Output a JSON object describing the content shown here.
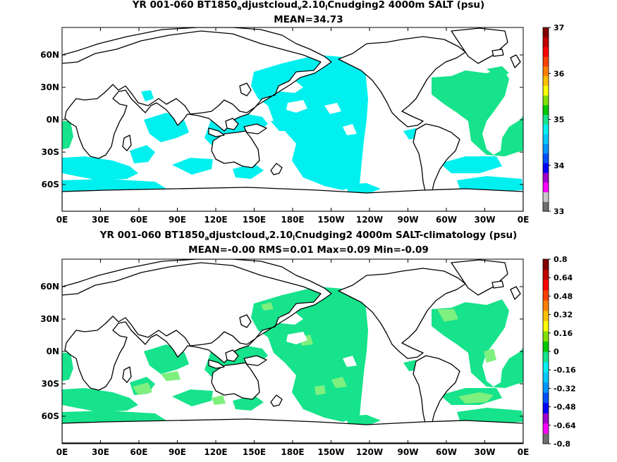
{
  "colors": {
    "upper_fill": "#00f0f0",
    "lower_fill_main": "#16e38b",
    "lower_fill_light": "#7ef07e",
    "coast": "#000000",
    "colorbar_upper": [
      "#6e6e6e",
      "#c8c8c8",
      "#ff00ff",
      "#a000c8",
      "#0000ff",
      "#0050ff",
      "#0096ff",
      "#00c8ff",
      "#00f0f0",
      "#16e38b",
      "#00c800",
      "#80e000",
      "#ffff00",
      "#ffc000",
      "#ff8000",
      "#ff4000",
      "#ff0000",
      "#c00000",
      "#800000"
    ],
    "colorbar_lower": [
      "#6e6e6e",
      "#ff00ff",
      "#a000c8",
      "#0000ff",
      "#0050ff",
      "#0096ff",
      "#00c8ff",
      "#00f0f0",
      "#16e38b",
      "#00c800",
      "#80e000",
      "#ffff00",
      "#ffc000",
      "#ff8000",
      "#ff4000",
      "#ff0000",
      "#c00000",
      "#800000"
    ]
  },
  "panel1": {
    "title_pre": "YR 001-060 BT1850",
    "sub1": "a",
    "title_mid1": "djustcloud",
    "sub2": "v",
    "title_mid2": "2.10",
    "sub3": "l",
    "title_post": "Cnudging2 4000m SALT (psu)",
    "stats": "MEAN=34.73",
    "colorbar_labels": [
      "37",
      "36",
      "35",
      "34",
      "33"
    ]
  },
  "panel2": {
    "title_pre": "YR 001-060 BT1850",
    "sub1": "a",
    "title_mid1": "djustcloud",
    "sub2": "v",
    "title_mid2": "2.10",
    "sub3": "l",
    "title_post": "Cnudging2 4000m SALT-climatology (psu)",
    "stats": "MEAN=-0.00   RMS=0.01   Max=0.09   Min=-0.09",
    "colorbar_labels": [
      "0.8",
      "0.64",
      "0.48",
      "0.32",
      "0.16",
      "0",
      "-0.16",
      "-0.32",
      "-0.48",
      "-0.64",
      "-0.8"
    ]
  },
  "axes": {
    "x_labels": [
      "0E",
      "30E",
      "60E",
      "90E",
      "120E",
      "150E",
      "180E",
      "150W",
      "120W",
      "90W",
      "60W",
      "30W",
      "0E"
    ],
    "y_labels": [
      "60N",
      "30N",
      "0N",
      "30S",
      "60S"
    ]
  },
  "chart_data": [
    {
      "type": "heatmap",
      "title": "YR 001-060 BT1850_adjustcloud_v2.10_lCnudging2 4000m SALT (psu)",
      "subtitle": "MEAN=34.73",
      "x_ticks": [
        "0E",
        "30E",
        "60E",
        "90E",
        "120E",
        "150E",
        "180E",
        "150W",
        "120W",
        "90W",
        "60W",
        "30W",
        "0E"
      ],
      "y_ticks": [
        "60N",
        "30N",
        "0N",
        "30S",
        "60S"
      ],
      "xlim": [
        0,
        360
      ],
      "ylim": [
        -80,
        90
      ],
      "colorbar": {
        "min": 33,
        "max": 37,
        "ticks": [
          33,
          34,
          35,
          36,
          37
        ]
      },
      "mean": 34.73
    },
    {
      "type": "heatmap",
      "title": "YR 001-060 BT1850_adjustcloud_v2.10_lCnudging2 4000m SALT-climatology (psu)",
      "subtitle": "MEAN=-0.00   RMS=0.01   Max=0.09   Min=-0.09",
      "x_ticks": [
        "0E",
        "30E",
        "60E",
        "90E",
        "120E",
        "150E",
        "180E",
        "150W",
        "120W",
        "90W",
        "60W",
        "30W",
        "0E"
      ],
      "y_ticks": [
        "60N",
        "30N",
        "0N",
        "30S",
        "60S"
      ],
      "xlim": [
        0,
        360
      ],
      "ylim": [
        -80,
        90
      ],
      "colorbar": {
        "min": -0.8,
        "max": 0.8,
        "ticks": [
          -0.8,
          -0.64,
          -0.48,
          -0.32,
          -0.16,
          0,
          0.16,
          0.32,
          0.48,
          0.64,
          0.8
        ]
      },
      "mean": -0.0,
      "rms": 0.01,
      "max": 0.09,
      "min": -0.09
    }
  ]
}
